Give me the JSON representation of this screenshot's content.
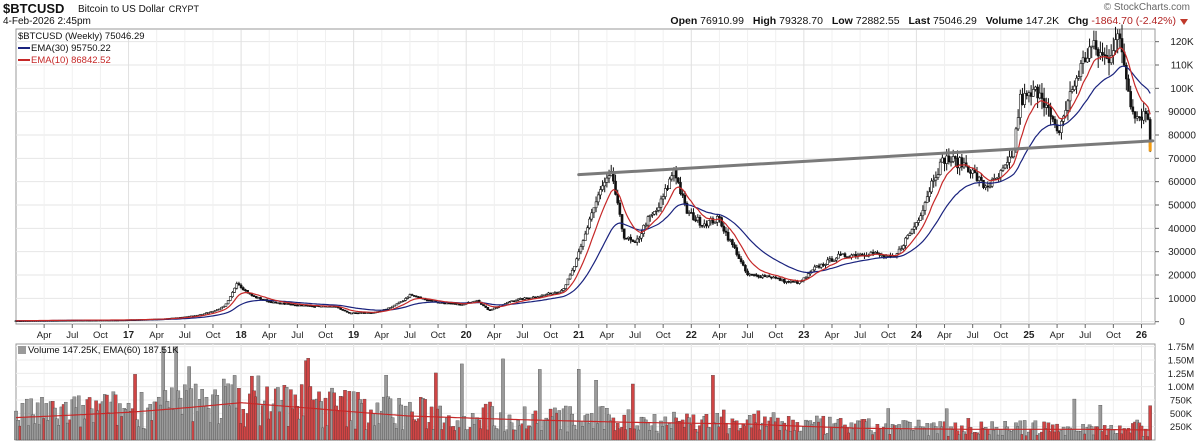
{
  "header": {
    "symbol": "$BTCUSD",
    "name": "Bitcoin to US Dollar",
    "exchange": "CRYPT",
    "date": "4-Feb-2026 2:45pm",
    "watermark": "© StockCharts.com",
    "open_label": "Open",
    "open": "76910.99",
    "high_label": "High",
    "high": "79328.70",
    "low_label": "Low",
    "low": "72882.55",
    "last_label": "Last",
    "last": "75046.29",
    "volume_label": "Volume",
    "volume": "147.2K",
    "chg_label": "Chg",
    "chg": "-1864.70 (-2.42%)"
  },
  "legend": {
    "price": "$BTCUSD (Weekly) 75046.29",
    "ema30": "EMA(30) 95750.22",
    "ema10": "EMA(10) 86842.52",
    "volume": "Volume 147.25K, EMA(60) 187.51K"
  },
  "colors": {
    "ema30": "#1a237e",
    "ema10": "#c62828",
    "up": "#111111",
    "down": "#111111",
    "trendline": "#7a7a7a",
    "vol_up": "#9a9a9a",
    "vol_down": "#d04545",
    "vol_ema": "#c62828"
  },
  "chart_data": {
    "type": "line",
    "x_axis": {
      "ticks": [
        "Apr",
        "Jul",
        "Oct",
        "17",
        "Apr",
        "Jul",
        "Oct",
        "18",
        "Apr",
        "Jul",
        "Oct",
        "19",
        "Apr",
        "Jul",
        "Oct",
        "20",
        "Apr",
        "Jul",
        "Oct",
        "21",
        "Apr",
        "Jul",
        "Oct",
        "22",
        "Apr",
        "Jul",
        "Oct",
        "23",
        "Apr",
        "Jul",
        "Oct",
        "24",
        "Apr",
        "Jul",
        "Oct",
        "25",
        "Apr",
        "Jul",
        "Oct",
        "26"
      ]
    },
    "y_axis": {
      "ticks": [
        0,
        10000,
        20000,
        30000,
        40000,
        50000,
        60000,
        70000,
        80000,
        90000,
        100000,
        110000,
        120000
      ],
      "tick_labels": [
        "0",
        "10000",
        "20000",
        "30000",
        "40000",
        "50000",
        "60000",
        "70000",
        "80000",
        "90000",
        "100K",
        "110K",
        "120K"
      ],
      "ylim": [
        -1000,
        125000
      ]
    },
    "price_anchors": [
      {
        "x": 2016.0,
        "y": 430
      },
      {
        "x": 2016.5,
        "y": 650
      },
      {
        "x": 2016.9,
        "y": 720
      },
      {
        "x": 2017.3,
        "y": 1200
      },
      {
        "x": 2017.6,
        "y": 2700
      },
      {
        "x": 2017.85,
        "y": 6500
      },
      {
        "x": 2017.96,
        "y": 17000
      },
      {
        "x": 2018.1,
        "y": 11000
      },
      {
        "x": 2018.3,
        "y": 8000
      },
      {
        "x": 2018.6,
        "y": 6800
      },
      {
        "x": 2018.85,
        "y": 6300
      },
      {
        "x": 2018.96,
        "y": 3700
      },
      {
        "x": 2019.2,
        "y": 4000
      },
      {
        "x": 2019.4,
        "y": 8000
      },
      {
        "x": 2019.5,
        "y": 11500
      },
      {
        "x": 2019.75,
        "y": 8300
      },
      {
        "x": 2019.96,
        "y": 7200
      },
      {
        "x": 2020.1,
        "y": 9500
      },
      {
        "x": 2020.2,
        "y": 5000
      },
      {
        "x": 2020.4,
        "y": 9000
      },
      {
        "x": 2020.7,
        "y": 11500
      },
      {
        "x": 2020.85,
        "y": 13500
      },
      {
        "x": 2021.0,
        "y": 29000
      },
      {
        "x": 2021.1,
        "y": 45000
      },
      {
        "x": 2021.2,
        "y": 57000
      },
      {
        "x": 2021.3,
        "y": 63000
      },
      {
        "x": 2021.4,
        "y": 37000
      },
      {
        "x": 2021.5,
        "y": 33000
      },
      {
        "x": 2021.6,
        "y": 43000
      },
      {
        "x": 2021.7,
        "y": 48000
      },
      {
        "x": 2021.85,
        "y": 66000
      },
      {
        "x": 2021.96,
        "y": 47000
      },
      {
        "x": 2022.1,
        "y": 42000
      },
      {
        "x": 2022.25,
        "y": 44000
      },
      {
        "x": 2022.4,
        "y": 30000
      },
      {
        "x": 2022.5,
        "y": 20000
      },
      {
        "x": 2022.7,
        "y": 19500
      },
      {
        "x": 2022.85,
        "y": 17000
      },
      {
        "x": 2022.96,
        "y": 16800
      },
      {
        "x": 2023.1,
        "y": 23000
      },
      {
        "x": 2023.3,
        "y": 28000
      },
      {
        "x": 2023.6,
        "y": 29500
      },
      {
        "x": 2023.8,
        "y": 27000
      },
      {
        "x": 2023.9,
        "y": 35000
      },
      {
        "x": 2024.0,
        "y": 42500
      },
      {
        "x": 2024.15,
        "y": 62000
      },
      {
        "x": 2024.25,
        "y": 70000
      },
      {
        "x": 2024.45,
        "y": 67000
      },
      {
        "x": 2024.6,
        "y": 58000
      },
      {
        "x": 2024.7,
        "y": 60000
      },
      {
        "x": 2024.85,
        "y": 70000
      },
      {
        "x": 2024.92,
        "y": 95000
      },
      {
        "x": 2025.0,
        "y": 96000
      },
      {
        "x": 2025.1,
        "y": 100000
      },
      {
        "x": 2025.25,
        "y": 80000
      },
      {
        "x": 2025.35,
        "y": 95000
      },
      {
        "x": 2025.45,
        "y": 108000
      },
      {
        "x": 2025.55,
        "y": 118000
      },
      {
        "x": 2025.7,
        "y": 112000
      },
      {
        "x": 2025.78,
        "y": 124000
      },
      {
        "x": 2025.85,
        "y": 110000
      },
      {
        "x": 2025.9,
        "y": 95000
      },
      {
        "x": 2025.96,
        "y": 88000
      },
      {
        "x": 2026.05,
        "y": 90000
      },
      {
        "x": 2026.09,
        "y": 75046
      }
    ],
    "trendline": [
      {
        "x": 2021.0,
        "y": 63000
      },
      {
        "x": 2026.1,
        "y": 77500
      }
    ],
    "volume": {
      "y_ticks": [
        250000,
        500000,
        750000,
        1000000,
        1250000,
        1500000,
        1750000
      ],
      "y_tick_labels": [
        "250K",
        "500K",
        "750K",
        "1.00M",
        "1.25M",
        "1.50M",
        "1.75M"
      ],
      "ylim": [
        0,
        1800000
      ],
      "ema60_anchors": [
        {
          "x": 2016.0,
          "y": 420000
        },
        {
          "x": 2017.0,
          "y": 520000
        },
        {
          "x": 2018.0,
          "y": 700000
        },
        {
          "x": 2018.6,
          "y": 600000
        },
        {
          "x": 2019.5,
          "y": 450000
        },
        {
          "x": 2020.5,
          "y": 380000
        },
        {
          "x": 2021.5,
          "y": 330000
        },
        {
          "x": 2022.5,
          "y": 300000
        },
        {
          "x": 2023.5,
          "y": 220000
        },
        {
          "x": 2024.5,
          "y": 200000
        },
        {
          "x": 2025.5,
          "y": 200000
        },
        {
          "x": 2026.09,
          "y": 187510
        }
      ]
    }
  }
}
